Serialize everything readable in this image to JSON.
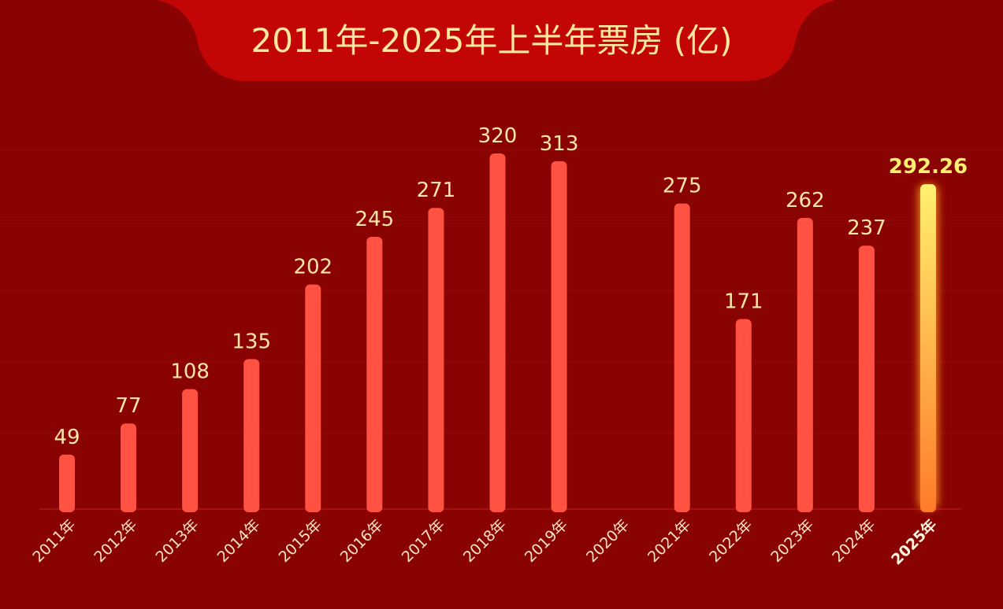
{
  "chart_data": {
    "type": "bar",
    "title": "2011年-2025年上半年票房 (亿)",
    "categories": [
      "2011年",
      "2012年",
      "2013年",
      "2014年",
      "2015年",
      "2016年",
      "2017年",
      "2018年",
      "2019年",
      "2020年",
      "2021年",
      "2022年",
      "2023年",
      "2024年",
      "2025年"
    ],
    "values": [
      49,
      77,
      108,
      135,
      202,
      245,
      271,
      320,
      313,
      null,
      275,
      171,
      262,
      237,
      292.26
    ],
    "colors": [
      "#ff5242",
      "#ff5242",
      "#ff5242",
      "#ff5242",
      "#ff5242",
      "#ff5242",
      "#ff5242",
      "#ff5242",
      "#ff5242",
      "#ff5242",
      "#ff5242",
      "#ff5242",
      "#ff5242",
      "#ff5242",
      "#fff070"
    ]
  }
}
